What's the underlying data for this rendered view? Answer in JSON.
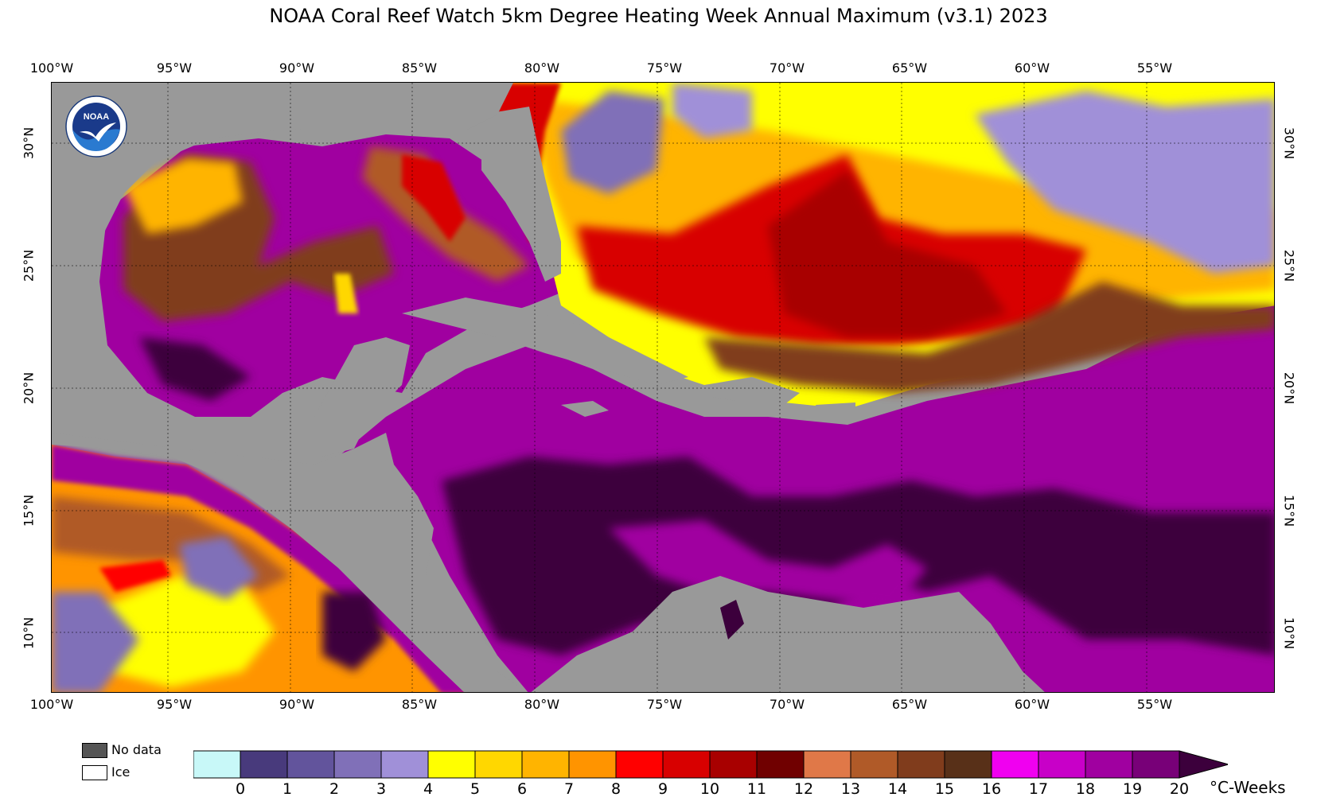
{
  "title": "NOAA Coral Reef Watch 5km Degree Heating Week Annual Maximum  (v3.1)   2023",
  "longitude_labels": [
    "100°W",
    "95°W",
    "90°W",
    "85°W",
    "80°W",
    "75°W",
    "70°W",
    "65°W",
    "60°W",
    "55°W"
  ],
  "latitude_labels": [
    "30°N",
    "25°N",
    "20°N",
    "15°N",
    "10°N"
  ],
  "logo_text": "NOAA",
  "map_extent": {
    "lon_min": -100,
    "lon_max": -50,
    "lat_min": 8,
    "lat_max": 33
  },
  "status_legend": [
    {
      "label": "No data",
      "color": "#555555"
    },
    {
      "label": "Ice",
      "color": "#ffffff"
    }
  ],
  "colorbar": {
    "ticks": [
      "0",
      "1",
      "2",
      "3",
      "4",
      "5",
      "6",
      "7",
      "8",
      "9",
      "10",
      "11",
      "12",
      "13",
      "14",
      "15",
      "16",
      "17",
      "18",
      "19",
      "20"
    ],
    "unit": "°C-Weeks",
    "colors": [
      "#c8f8f8",
      "#483a7c",
      "#62549c",
      "#8070b8",
      "#a090d8",
      "#ffff00",
      "#ffd700",
      "#ffb400",
      "#ff9400",
      "#ff0000",
      "#d80000",
      "#a80000",
      "#700000",
      "#e07848",
      "#b05a28",
      "#803c1c",
      "#583018",
      "#f000f0",
      "#c800c8",
      "#a000a0",
      "#780078",
      "#3c003c"
    ]
  },
  "colors": {
    "land": "#999999"
  }
}
